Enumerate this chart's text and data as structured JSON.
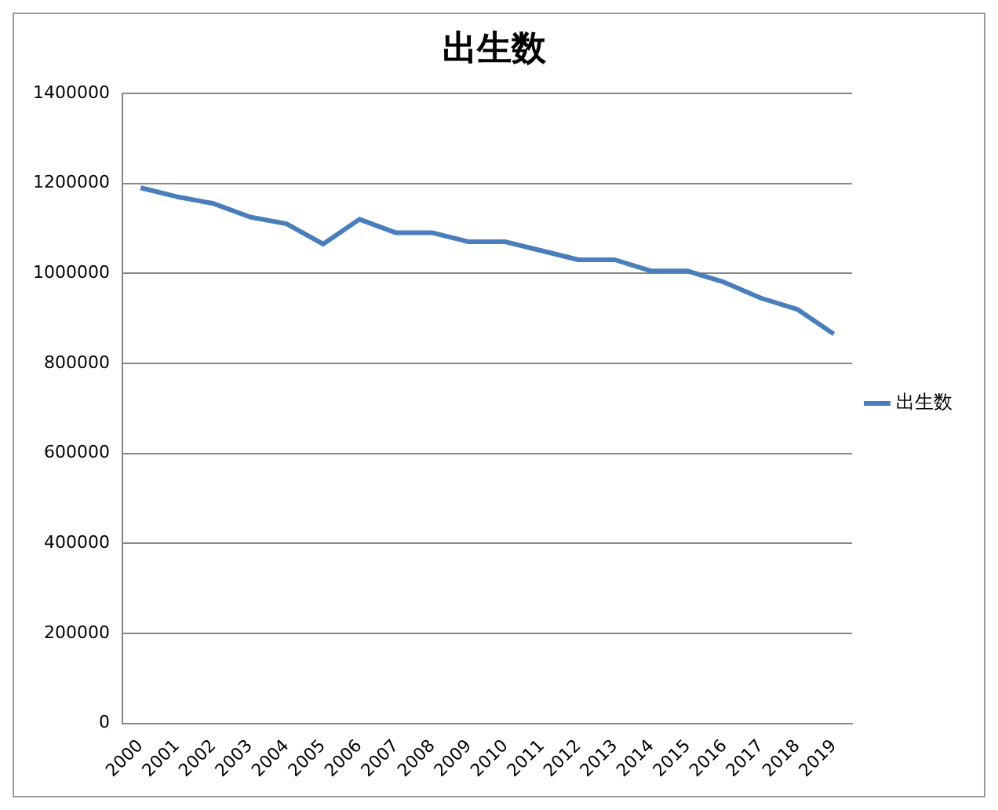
{
  "chart_data": {
    "type": "line",
    "title": "出生数",
    "categories": [
      "2000",
      "2001",
      "2002",
      "2003",
      "2004",
      "2005",
      "2006",
      "2007",
      "2008",
      "2009",
      "2010",
      "2011",
      "2012",
      "2013",
      "2014",
      "2015",
      "2016",
      "2017",
      "2018",
      "2019"
    ],
    "series": [
      {
        "name": "出生数",
        "color": "#4a7ebb",
        "values": [
          1190000,
          1170000,
          1155000,
          1125000,
          1110000,
          1065000,
          1120000,
          1090000,
          1090000,
          1070000,
          1070000,
          1050000,
          1030000,
          1030000,
          1005000,
          1005000,
          980000,
          945000,
          920000,
          865000
        ]
      }
    ],
    "ylim": [
      0,
      1400000
    ],
    "yticks": [
      0,
      200000,
      400000,
      600000,
      800000,
      1000000,
      1200000,
      1400000
    ],
    "grid": "y",
    "legend": "right",
    "marker": "none",
    "line_style": "solid"
  }
}
